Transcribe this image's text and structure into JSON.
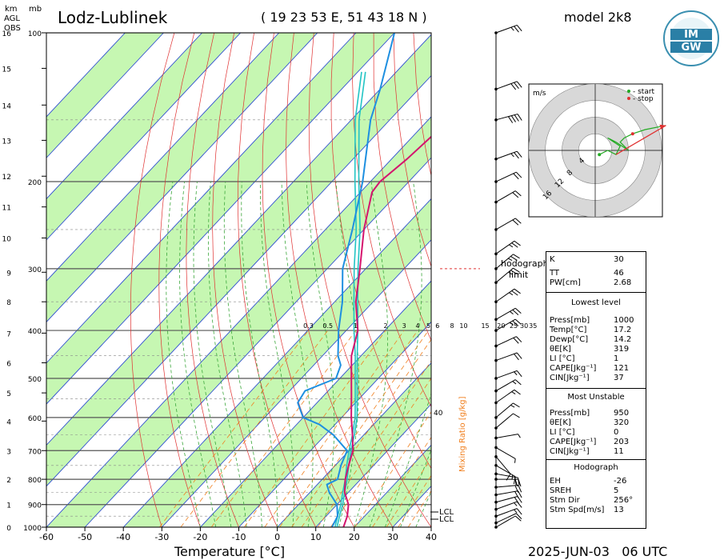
{
  "header": {
    "station": "Lodz-Lublinek",
    "coords": "( 19 23 53  E, 51 43 18 N )",
    "model": "model 2k8",
    "date": "2025-JUN-03",
    "time": "06 UTC",
    "km_label": "km",
    "mb_label": "mb",
    "agl_label": "AGL",
    "obs_label": "OBS",
    "logo_text_1": "IM",
    "logo_text_2": "GW"
  },
  "chart_data": {
    "type": "skew-t log-p sounding",
    "xlabel": "Temperature [°C]",
    "x_ticks": [
      "-60",
      "-50",
      "-40",
      "-30",
      "-20",
      "-10",
      "0",
      "10",
      "20",
      "30",
      "40"
    ],
    "xlim": [
      -60,
      40
    ],
    "p_ticks": [
      100,
      200,
      300,
      400,
      500,
      600,
      700,
      800,
      900,
      1000
    ],
    "ylim_mb": [
      1000,
      100
    ],
    "km_ticks": [
      "0",
      "1",
      "2",
      "3",
      "4",
      "5",
      "6",
      "7",
      "8",
      "9",
      "10",
      "11",
      "12",
      "13",
      "14",
      "15",
      "16"
    ],
    "km_pressures": [
      1000,
      900,
      800,
      700,
      610,
      535,
      465,
      405,
      350,
      305,
      260,
      225,
      195,
      165,
      140,
      118,
      100
    ],
    "mixing_ratio_label": "Mixing Ratio [g/kg]",
    "mixing_ratio_ticks": [
      "0.3",
      "0.5",
      "1",
      "2",
      "3",
      "4",
      "5",
      "6",
      "8",
      "10",
      "15",
      "20",
      "25",
      "30",
      "35"
    ],
    "mixing_ratio_extra": "40",
    "lcl_labels": [
      "LCL",
      "LCL"
    ],
    "hodograph_limit_label": "hodograph limit",
    "temperature_profile": {
      "p": [
        1000,
        950,
        900,
        850,
        800,
        750,
        700,
        650,
        600,
        550,
        500,
        450,
        400,
        350,
        300,
        250,
        210,
        200,
        180,
        150,
        120,
        100
      ],
      "t": [
        17.2,
        15.5,
        13.0,
        9.0,
        6.0,
        3.5,
        1.0,
        -3.0,
        -7.5,
        -12.0,
        -17.0,
        -22.5,
        -27.0,
        -34.5,
        -41.5,
        -50.0,
        -57.0,
        -57.5,
        -56.0,
        -54.5,
        -55.0,
        -57.0
      ]
    },
    "dewpoint_profile": {
      "p": [
        1000,
        950,
        900,
        850,
        820,
        800,
        750,
        700,
        650,
        620,
        600,
        560,
        530,
        500,
        470,
        450,
        400,
        350,
        300,
        250,
        200,
        150,
        130,
        100
      ],
      "td": [
        14.2,
        13.0,
        10.0,
        5.0,
        2.5,
        4.0,
        1.5,
        -0.5,
        -8.0,
        -14.0,
        -20.0,
        -25.0,
        -26.0,
        -21.0,
        -23.0,
        -26.0,
        -32.0,
        -38.0,
        -46.0,
        -53.0,
        -62.0,
        -75.0,
        -80.0,
        -90.0
      ]
    },
    "parcel_profile": {
      "p": [
        1000,
        950,
        900,
        850,
        800,
        750,
        700,
        650,
        600,
        550,
        500,
        450,
        400,
        350,
        300,
        250,
        200,
        150,
        120
      ],
      "t": [
        15.5,
        13.5,
        11.5,
        9.0,
        6.5,
        3.5,
        0.5,
        -2.5,
        -6.0,
        -10.5,
        -15.5,
        -21.0,
        -27.0,
        -34.0,
        -42.0,
        -51.0,
        -63.0,
        -78.0,
        -88.0
      ]
    },
    "parcel_profile_2": {
      "p": [
        1000,
        950,
        900,
        850,
        800,
        750,
        700,
        650,
        600,
        550,
        500,
        450,
        400,
        350,
        300,
        250,
        200,
        150,
        120
      ],
      "t": [
        15.0,
        13.0,
        11.0,
        8.5,
        6.0,
        3.0,
        0.0,
        -3.0,
        -6.5,
        -11.0,
        -16.0,
        -21.5,
        -28.0,
        -35.0,
        -43.0,
        -52.0,
        -64.0,
        -79.0,
        -89.0
      ]
    },
    "wind_barbs": {
      "p": [
        100,
        130,
        150,
        180,
        200,
        220,
        250,
        280,
        300,
        320,
        350,
        380,
        400,
        430,
        460,
        500,
        530,
        560,
        600,
        630,
        660,
        690,
        720,
        750,
        780,
        800,
        830,
        860,
        890,
        920,
        950,
        980,
        1000
      ],
      "dir": [
        250,
        250,
        255,
        250,
        245,
        240,
        240,
        235,
        230,
        230,
        235,
        240,
        240,
        245,
        250,
        250,
        240,
        235,
        230,
        230,
        260,
        300,
        320,
        300,
        280,
        270,
        265,
        260,
        255,
        250,
        250,
        245,
        240
      ],
      "speed_kt": [
        25,
        30,
        40,
        25,
        20,
        20,
        20,
        25,
        25,
        25,
        25,
        25,
        25,
        20,
        20,
        15,
        15,
        15,
        15,
        10,
        5,
        5,
        10,
        15,
        20,
        20,
        20,
        20,
        20,
        15,
        15,
        10,
        10
      ]
    },
    "hodograph": {
      "units": "m/s",
      "legend": [
        "start",
        "stop"
      ],
      "ring_labels": [
        "4",
        "8",
        "12",
        "16"
      ],
      "u": [
        1,
        3,
        5,
        6,
        3,
        5,
        8,
        6,
        7,
        9,
        12,
        17
      ],
      "v": [
        -1,
        0,
        -1,
        1,
        3,
        2,
        0,
        2,
        3,
        4,
        5,
        6
      ]
    }
  },
  "indices": {
    "K_label": "K",
    "K": "30",
    "TT_label": "TT",
    "TT": "46",
    "PW_label": "PW[cm]",
    "PW": "2.68",
    "lowest_title": "Lowest level",
    "lowest": [
      {
        "k": "Press[mb]",
        "v": "1000"
      },
      {
        "k": "Temp[°C]",
        "v": "17.2"
      },
      {
        "k": "Dewp[°C]",
        "v": "14.2"
      },
      {
        "k": "θE[K]",
        "v": "319"
      },
      {
        "k": "LI [°C]",
        "v": "1"
      },
      {
        "k": "CAPE[Jkg⁻¹]",
        "v": "121"
      },
      {
        "k": "CIN[Jkg⁻¹]",
        "v": "37"
      }
    ],
    "mu_title": "Most Unstable",
    "mu": [
      {
        "k": "Press[mb]",
        "v": "950"
      },
      {
        "k": "θE[K]",
        "v": "320"
      },
      {
        "k": "LI [°C]",
        "v": "0"
      },
      {
        "k": "CAPE[Jkg⁻¹]",
        "v": "203"
      },
      {
        "k": "CIN[Jkg⁻¹]",
        "v": "11"
      }
    ],
    "hodo_title": "Hodograph",
    "hodo": [
      {
        "k": "EH",
        "v": "-26"
      },
      {
        "k": "SREH",
        "v": "5"
      },
      {
        "k": "Stm Dir",
        "v": "256°"
      },
      {
        "k": "Stm Spd[m/s]",
        "v": "13"
      }
    ]
  },
  "colors": {
    "temperature": "#d4146e",
    "dewpoint": "#1e8fe0",
    "parcel": "#22c4c4",
    "dry_adiabat": "#e03030",
    "moist_adiabat": "#3aa63a",
    "mixing_ratio": "#f08020",
    "isotherm": "#3050d0",
    "band": "#c6f7b2",
    "hodo_line": "#e03030",
    "hodo_start": "#22aa22",
    "hodo_stop": "#e03030"
  }
}
